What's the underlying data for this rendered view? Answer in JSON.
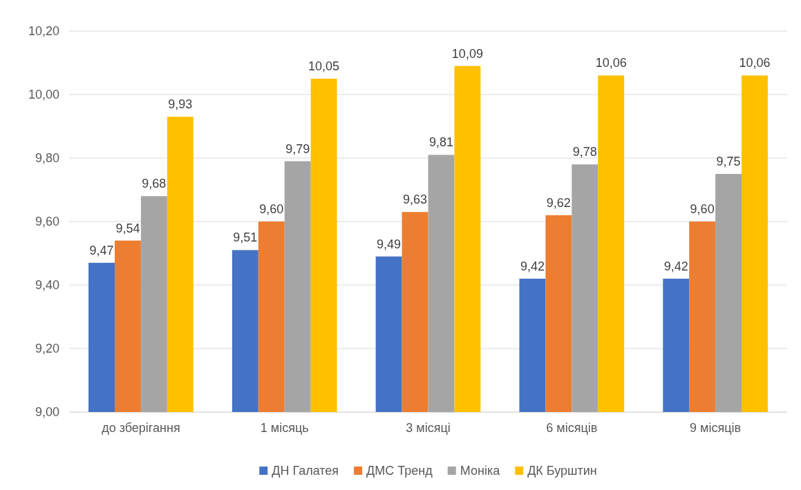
{
  "chart_data": {
    "type": "bar",
    "categories": [
      "до зберігання",
      "1 місяць",
      "3 місяці",
      "6 місяців",
      "9 місяців"
    ],
    "series": [
      {
        "name": "ДН Галатея",
        "color": "#4472c4",
        "values": [
          9.47,
          9.51,
          9.49,
          9.42,
          9.42
        ],
        "value_labels": [
          "9,47",
          "9,51",
          "9,49",
          "9,42",
          "9,42"
        ]
      },
      {
        "name": "ДМС Тренд",
        "color": "#ed7d31",
        "values": [
          9.54,
          9.6,
          9.63,
          9.62,
          9.6
        ],
        "value_labels": [
          "9,54",
          "9,60",
          "9,63",
          "9,62",
          "9,60"
        ]
      },
      {
        "name": "Моніка",
        "color": "#a5a5a5",
        "values": [
          9.68,
          9.79,
          9.81,
          9.78,
          9.75
        ],
        "value_labels": [
          "9,68",
          "9,79",
          "9,81",
          "9,78",
          "9,75"
        ]
      },
      {
        "name": "ДК Бурштин",
        "color": "#ffc000",
        "values": [
          9.93,
          10.05,
          10.09,
          10.06,
          10.06
        ],
        "value_labels": [
          "9,93",
          "10,05",
          "10,09",
          "10,06",
          "10,06"
        ]
      }
    ],
    "ylim": [
      9.0,
      10.2
    ],
    "yticks": [
      {
        "value": 9.0,
        "label": "9,00"
      },
      {
        "value": 9.2,
        "label": "9,20"
      },
      {
        "value": 9.4,
        "label": "9,40"
      },
      {
        "value": 9.6,
        "label": "9,60"
      },
      {
        "value": 9.8,
        "label": "9,80"
      },
      {
        "value": 10.0,
        "label": "10,00"
      },
      {
        "value": 10.2,
        "label": "10,20"
      }
    ],
    "grid": "y",
    "legend": "bottom"
  }
}
